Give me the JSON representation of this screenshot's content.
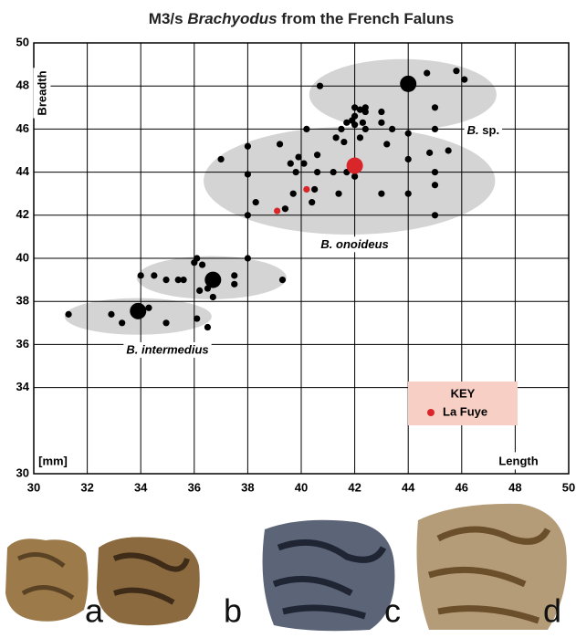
{
  "chart_data": {
    "type": "scatter",
    "title": [
      "M3/s ",
      "Brachyodus",
      " from the French Faluns"
    ],
    "x_label": "Length",
    "y_label": "Breadth",
    "unit_label": "[mm]",
    "xlim": [
      30,
      50
    ],
    "ylim": [
      30,
      50
    ],
    "xticks": [
      30,
      32,
      34,
      36,
      38,
      40,
      42,
      44,
      46,
      48,
      50
    ],
    "yticks": [
      30,
      34,
      36,
      38,
      40,
      42,
      44,
      46,
      48,
      50
    ],
    "grid": true,
    "points": {
      "color": "#000000",
      "x": [
        31.3,
        32.9,
        33.3,
        34.3,
        34.95,
        36.1,
        36.5,
        34.0,
        34.5,
        34.95,
        35.4,
        35.6,
        36.0,
        36.1,
        36.3,
        36.2,
        36.7,
        37.5,
        37.5,
        38.0,
        39.3,
        36.5,
        37.0,
        38.0,
        38.0,
        38.0,
        38.3,
        39.2,
        39.6,
        39.9,
        40.1,
        39.8,
        40.2,
        39.4,
        39.7,
        40.4,
        40.6,
        40.6,
        40.5,
        41.2,
        41.3,
        41.4,
        41.6,
        41.7,
        42.0,
        42.2,
        43.0,
        43.2,
        44.0,
        44.0,
        44.0,
        44.8,
        45.0,
        45.0,
        45.0,
        45.5,
        40.7,
        41.5,
        41.7,
        41.9,
        42.0,
        42.0,
        42.0,
        42.2,
        42.3,
        42.4,
        42.4,
        42.4,
        43.0,
        43.0,
        43.4,
        44.7,
        45.0,
        45.0,
        45.8,
        46.1
      ],
      "y": [
        37.4,
        37.4,
        37.0,
        37.7,
        37.0,
        37.2,
        36.8,
        39.2,
        39.2,
        39.0,
        39.0,
        39.0,
        39.8,
        40.0,
        39.7,
        38.5,
        38.2,
        39.2,
        38.8,
        40.0,
        39.0,
        38.6,
        44.6,
        45.2,
        43.9,
        42.0,
        42.6,
        45.3,
        44.4,
        44.7,
        44.4,
        44.0,
        46.0,
        42.3,
        43.0,
        42.6,
        44.8,
        44.0,
        43.2,
        44.0,
        45.6,
        43.0,
        45.4,
        44.0,
        43.8,
        45.6,
        43.0,
        45.3,
        45.8,
        44.6,
        43.0,
        44.9,
        44.0,
        43.4,
        42.0,
        45.0,
        48.0,
        46.0,
        46.3,
        46.4,
        46.2,
        47.0,
        46.6,
        46.9,
        46.3,
        46.8,
        46.0,
        47.0,
        46.8,
        46.3,
        46.0,
        48.6,
        47.0,
        46.0,
        48.7,
        48.3
      ]
    },
    "means": {
      "x": [
        33.9,
        36.7,
        42.0,
        44.0
      ],
      "y": [
        37.55,
        39.0,
        44.3,
        48.1
      ],
      "colors": [
        "#000000",
        "#000000",
        "#d9262b",
        "#000000"
      ]
    },
    "groups": [
      {
        "label": [
          "B. intermedius"
        ],
        "italic": [
          true
        ],
        "center": [
          33.9,
          37.3
        ],
        "radius": [
          2.75,
          0.85
        ]
      },
      {
        "label": [],
        "italic": [],
        "center": [
          36.65,
          39.1
        ],
        "radius": [
          2.8,
          1.0
        ]
      },
      {
        "label": [
          "B. onoideus"
        ],
        "italic": [
          true
        ],
        "center": [
          41.8,
          43.6
        ],
        "radius": [
          5.45,
          2.5
        ]
      },
      {
        "label": [
          "B.",
          " sp."
        ],
        "italic": [
          true,
          false
        ],
        "center": [
          43.8,
          47.6
        ],
        "radius": [
          3.5,
          1.65
        ]
      }
    ],
    "key": {
      "title": "KEY",
      "series": [
        {
          "name": "La Fuye",
          "color": "#d9262b",
          "x": [
            40.2,
            39.1
          ],
          "y": [
            43.2,
            42.2
          ]
        }
      ]
    }
  },
  "photos": [
    "a",
    "b",
    "c",
    "d"
  ]
}
